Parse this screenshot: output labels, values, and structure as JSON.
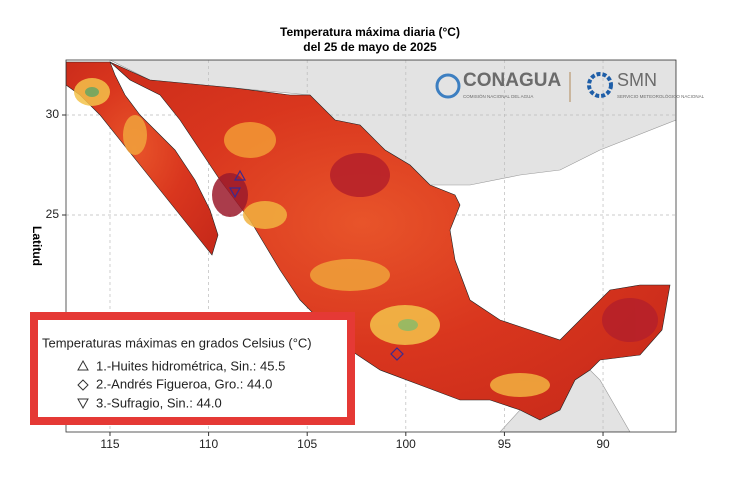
{
  "chart_data": {
    "type": "map",
    "title": "Temperatura máxima diaria (°C)",
    "subtitle": "del 25 de mayo de 2025",
    "ylabel": "Latitud",
    "xlim": [
      117.23,
      86.3
    ],
    "ylim": [
      14.15,
      32.75
    ],
    "xticks": [
      115,
      110,
      105,
      100,
      95,
      90
    ],
    "yticks": [
      30,
      25
    ],
    "grid": true,
    "legend": {
      "title": "Temperaturas máximas en grados Celsius (°C)",
      "items": [
        "1.-Huites hidrométrica, Sin.: 45.5",
        "2.-Andrés Figueroa, Gro.: 44.0",
        "3.-Sufragio, Sin.: 44.0"
      ]
    }
  },
  "logos": {
    "conagua": "CONAGUA",
    "conagua_sub": "COMISIÓN NACIONAL DEL AGUA",
    "smn": "SMN",
    "smn_sub": "SERVICIO METEOROLÓGICO NACIONAL"
  }
}
